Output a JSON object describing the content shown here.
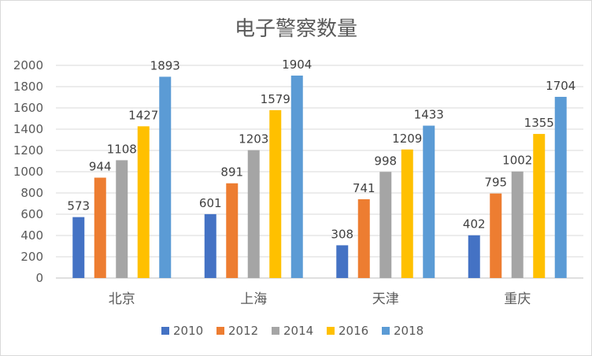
{
  "chart_data": {
    "type": "bar",
    "title": "电子警察数量",
    "xlabel": "",
    "ylabel": "",
    "categories": [
      "北京",
      "上海",
      "天津",
      "重庆"
    ],
    "series": [
      {
        "name": "2010",
        "color": "#4472C4",
        "values": [
          573,
          601,
          308,
          402
        ]
      },
      {
        "name": "2012",
        "color": "#ED7D31",
        "values": [
          944,
          891,
          741,
          795
        ]
      },
      {
        "name": "2014",
        "color": "#A5A5A5",
        "values": [
          1108,
          1203,
          998,
          1002
        ]
      },
      {
        "name": "2016",
        "color": "#FFC000",
        "values": [
          1427,
          1579,
          1209,
          1355
        ]
      },
      {
        "name": "2018",
        "color": "#5B9BD5",
        "values": [
          1893,
          1904,
          1433,
          1704
        ]
      }
    ],
    "ylim": [
      0,
      2000
    ],
    "yticks": [
      0,
      200,
      400,
      600,
      800,
      1000,
      1200,
      1400,
      1600,
      1800,
      2000
    ],
    "grid": true,
    "legend": "bottom",
    "data_labels": true
  }
}
